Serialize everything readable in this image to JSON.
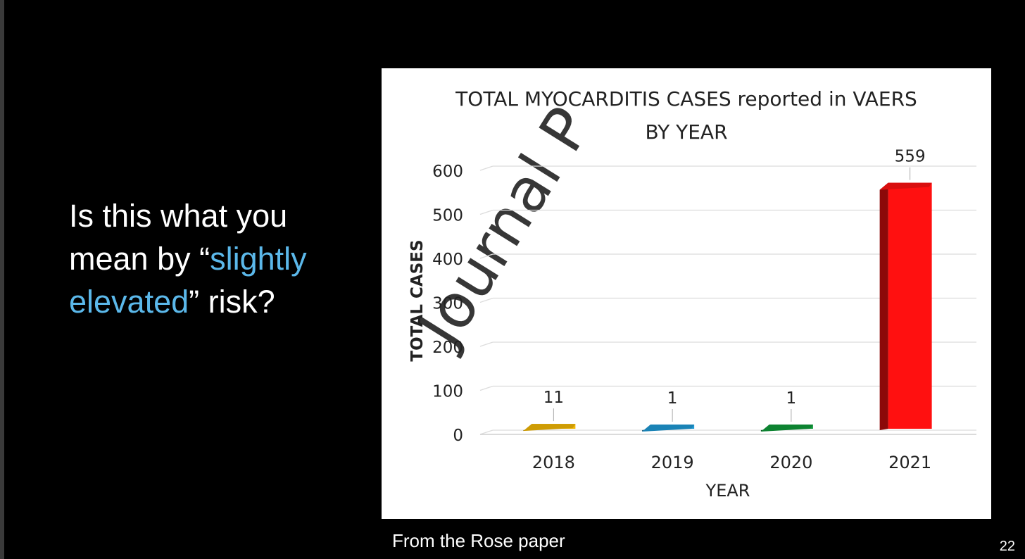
{
  "question": {
    "part1": "Is this what you mean by “",
    "highlight1": "slightly",
    "space": " ",
    "highlight2": "elevated",
    "part2": "” risk?"
  },
  "caption": "From the Rose paper",
  "slide_number": "22",
  "watermark": "Journal P",
  "chart_data": {
    "type": "bar",
    "title": "TOTAL MYOCARDITIS CASES reported in VAERS BY YEAR",
    "title_line1": "TOTAL MYOCARDITIS CASES reported in VAERS",
    "title_line2": "BY YEAR",
    "xlabel": "YEAR",
    "ylabel": "TOTAL CASES",
    "categories": [
      "2018",
      "2019",
      "2020",
      "2021"
    ],
    "values": [
      11,
      1,
      1,
      559
    ],
    "data_labels": [
      "11",
      "1",
      "1",
      "559"
    ],
    "colors": [
      "#f2b705",
      "#1e9ad6",
      "#0f9a3a",
      "#ff1010"
    ],
    "ylim": [
      0,
      600
    ],
    "yticks": [
      0,
      100,
      200,
      300,
      400,
      500,
      600
    ],
    "grid": true,
    "style": "3d"
  }
}
